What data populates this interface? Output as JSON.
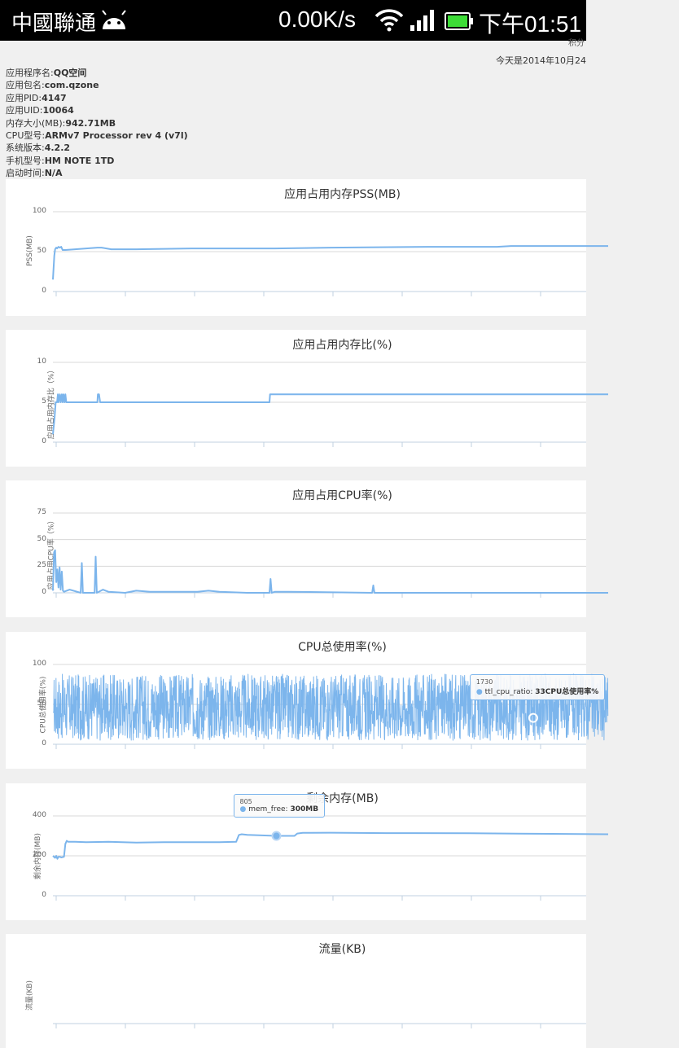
{
  "status_bar": {
    "carrier": "中國聯通",
    "net_speed": "0.00K/s",
    "time": "下午01:51",
    "icons": [
      "android-icon",
      "wifi-icon",
      "signal-icon",
      "battery-icon"
    ],
    "battery_color": "#3ddc37"
  },
  "header": {
    "date_text": "今天是2014年10月24",
    "cut_text": "积分"
  },
  "app_info": [
    {
      "label": "应用程序名:",
      "value": "QQ空间"
    },
    {
      "label": "应用包名:",
      "value": "com.qzone"
    },
    {
      "label": "应用PID:",
      "value": "4147"
    },
    {
      "label": "应用UID:",
      "value": "10064"
    },
    {
      "label": "内存大小(MB):",
      "value": "942.71MB"
    },
    {
      "label": "CPU型号:",
      "value": "ARMv7 Processor rev 4 (v7l)"
    },
    {
      "label": "系统版本:",
      "value": "4.2.2"
    },
    {
      "label": "手机型号:",
      "value": "HM NOTE 1TD"
    },
    {
      "label": "启动时间:",
      "value": "N/A"
    }
  ],
  "series_color": "#7cb5ec",
  "chart_data": [
    {
      "type": "line",
      "title": "应用占用内存PSS(MB)",
      "ylabel": "PSS(MB)",
      "ylim": [
        0,
        100
      ],
      "yticks": [
        0,
        50,
        100
      ],
      "xlim": [
        0,
        2000
      ],
      "grid": true,
      "series": [
        {
          "x": [
            0,
            5,
            8,
            12,
            15,
            20,
            25,
            30,
            35,
            40,
            45,
            160,
            175,
            210,
            300,
            500,
            800,
            1000,
            1350,
            1600,
            1650,
            2000
          ],
          "y": [
            15,
            45,
            53,
            55,
            54,
            56,
            55,
            56,
            52,
            52,
            52,
            55,
            55,
            53,
            53,
            54,
            54,
            55,
            56,
            56,
            57,
            57
          ]
        }
      ]
    },
    {
      "type": "line",
      "title": "应用占用内存比(%)",
      "ylabel": "应用占用内存比（%）",
      "ylim": [
        0,
        10
      ],
      "yticks": [
        0,
        5,
        10
      ],
      "xlim": [
        0,
        2000
      ],
      "grid": true,
      "series": [
        {
          "x": [
            0,
            6,
            10,
            15,
            18,
            20,
            25,
            28,
            32,
            35,
            38,
            42,
            45,
            48,
            50,
            52,
            160,
            162,
            166,
            170,
            780,
            782,
            2000
          ],
          "y": [
            1,
            3,
            5,
            5,
            6,
            5,
            6,
            5,
            6,
            5,
            6,
            5,
            6,
            5,
            5,
            5,
            5,
            6,
            6,
            5,
            5,
            6,
            6
          ]
        }
      ]
    },
    {
      "type": "line",
      "title": "应用占用CPU率(%)",
      "ylabel": "应用占用CPU率（%）",
      "ylim": [
        0,
        75
      ],
      "yticks": [
        0,
        25,
        50,
        75
      ],
      "xlim": [
        0,
        2000
      ],
      "grid": true,
      "series": [
        {
          "x": [
            0,
            4,
            8,
            12,
            16,
            20,
            24,
            28,
            32,
            36,
            40,
            60,
            100,
            104,
            108,
            150,
            154,
            158,
            180,
            190,
            200,
            260,
            300,
            350,
            520,
            560,
            600,
            700,
            780,
            784,
            788,
            800,
            850,
            1150,
            1154,
            1158,
            2000
          ],
          "y": [
            2,
            38,
            40,
            10,
            22,
            5,
            24,
            3,
            20,
            2,
            1,
            3,
            0,
            28,
            0,
            0,
            34,
            0,
            3,
            2,
            1,
            0,
            2,
            1,
            1,
            2,
            1,
            0,
            0,
            13,
            0,
            1,
            1,
            0,
            7,
            0,
            0
          ]
        }
      ]
    },
    {
      "type": "line",
      "title": "CPU总使用率(%)",
      "ylabel": "CPU总使用率(%)",
      "ylim": [
        0,
        100
      ],
      "yticks": [
        0,
        50,
        100
      ],
      "xlim": [
        0,
        2000
      ],
      "grid": true,
      "series": [
        {
          "name": "ttl_cpu_ratio",
          "noisy": true,
          "min": 5,
          "max": 88,
          "points": 2000
        }
      ],
      "tooltip": {
        "x_label": "1730",
        "series": "ttl_cpu_ratio",
        "value": "33CPU总使用率%"
      }
    },
    {
      "type": "line",
      "title": "剩余内存(MB)",
      "ylabel": "剩余内存(MB)",
      "ylim": [
        0,
        400
      ],
      "yticks": [
        0,
        200,
        400
      ],
      "xlim": [
        0,
        2000
      ],
      "grid": true,
      "series": [
        {
          "name": "mem_free",
          "x": [
            0,
            8,
            12,
            16,
            20,
            25,
            30,
            40,
            45,
            50,
            55,
            80,
            120,
            200,
            300,
            400,
            500,
            600,
            660,
            670,
            680,
            700,
            805,
            870,
            880,
            900,
            1000,
            1200,
            1500,
            1800,
            2000
          ],
          "y": [
            200,
            190,
            200,
            185,
            195,
            195,
            192,
            195,
            260,
            275,
            270,
            270,
            268,
            270,
            266,
            268,
            268,
            268,
            270,
            305,
            308,
            305,
            300,
            300,
            312,
            315,
            316,
            314,
            313,
            310,
            308
          ]
        }
      ],
      "tooltip": {
        "x_label": "805",
        "series": "mem_free",
        "value": "300MB"
      }
    },
    {
      "type": "line",
      "title": "流量(KB)",
      "ylabel": "流量(KB)",
      "ylim": [],
      "yticks": [],
      "xlim": [
        0,
        2000
      ],
      "grid": true,
      "series": []
    }
  ]
}
